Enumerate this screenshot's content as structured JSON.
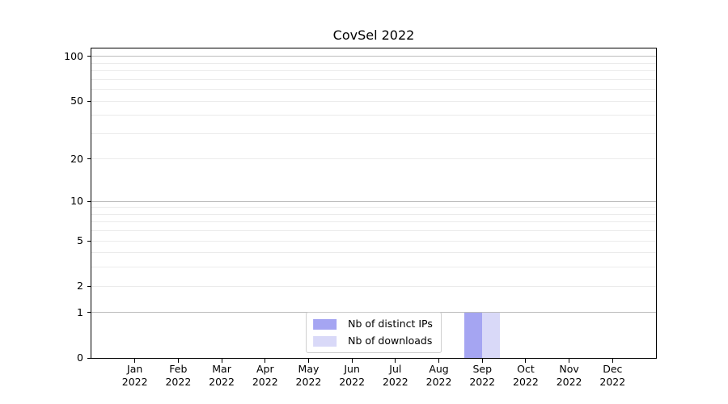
{
  "chart_data": {
    "type": "bar",
    "title": "CovSel 2022",
    "categories": [
      "Jan",
      "Feb",
      "Mar",
      "Apr",
      "May",
      "Jun",
      "Jul",
      "Aug",
      "Sep",
      "Oct",
      "Nov",
      "Dec"
    ],
    "year_label": "2022",
    "series": [
      {
        "name": "Nb of distinct IPs",
        "color": "#a5a5f2",
        "values": [
          0,
          0,
          0,
          0,
          0,
          0,
          0,
          0,
          1,
          0,
          0,
          0
        ]
      },
      {
        "name": "Nb of downloads",
        "color": "#d9d9f8",
        "values": [
          0,
          0,
          0,
          0,
          0,
          0,
          0,
          0,
          1,
          0,
          0,
          0
        ]
      }
    ],
    "yscale": "log1p",
    "ymax": 113,
    "yticks": [
      0,
      1,
      2,
      5,
      10,
      20,
      50,
      100
    ],
    "major_gridlines": [
      1,
      10,
      100
    ],
    "minor_gridlines": [
      2,
      3,
      4,
      5,
      6,
      7,
      8,
      9,
      20,
      30,
      40,
      50,
      60,
      70,
      80,
      90
    ],
    "grid_colors": {
      "major": "#bcbcbc",
      "minor": "#ebebeb"
    },
    "legend_position": "lower center"
  }
}
